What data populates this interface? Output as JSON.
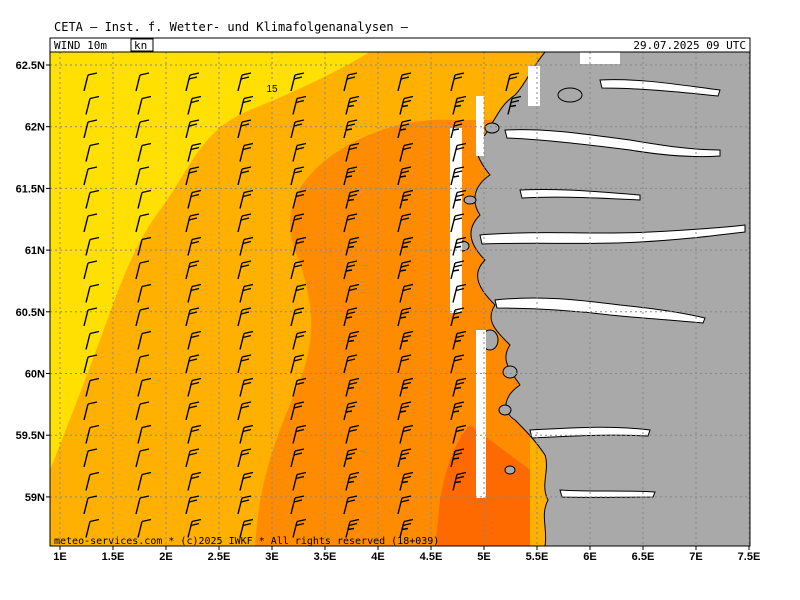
{
  "header": {
    "title": "CETA — Inst. f. Wetter- und Klimafolgenanalysen —",
    "variable": "WIND  10m",
    "unit": "kn",
    "datetime": "29.07.2025  09  UTC"
  },
  "map": {
    "lon_ticks": [
      "1E",
      "1.5E",
      "2E",
      "2.5E",
      "3E",
      "3.5E",
      "4E",
      "4.5E",
      "5E",
      "5.5E",
      "6E",
      "6.5E",
      "7E",
      "7.5E"
    ],
    "lat_ticks": [
      "62.5N",
      "62N",
      "61.5N",
      "61N",
      "60.5N",
      "60N",
      "59.5N",
      "59N"
    ],
    "contour_label": "15",
    "footer": "meteo-services.com * (c)2025 IWKF * All rights reserved (18+039)",
    "colors": {
      "band_light": "#ffe000",
      "band_mid": "#ffb000",
      "band_strong": "#ff8c00",
      "band_max": "#ff6a00",
      "land": "#a9a9a9",
      "coast": "#000000",
      "grid": "#888888"
    }
  }
}
